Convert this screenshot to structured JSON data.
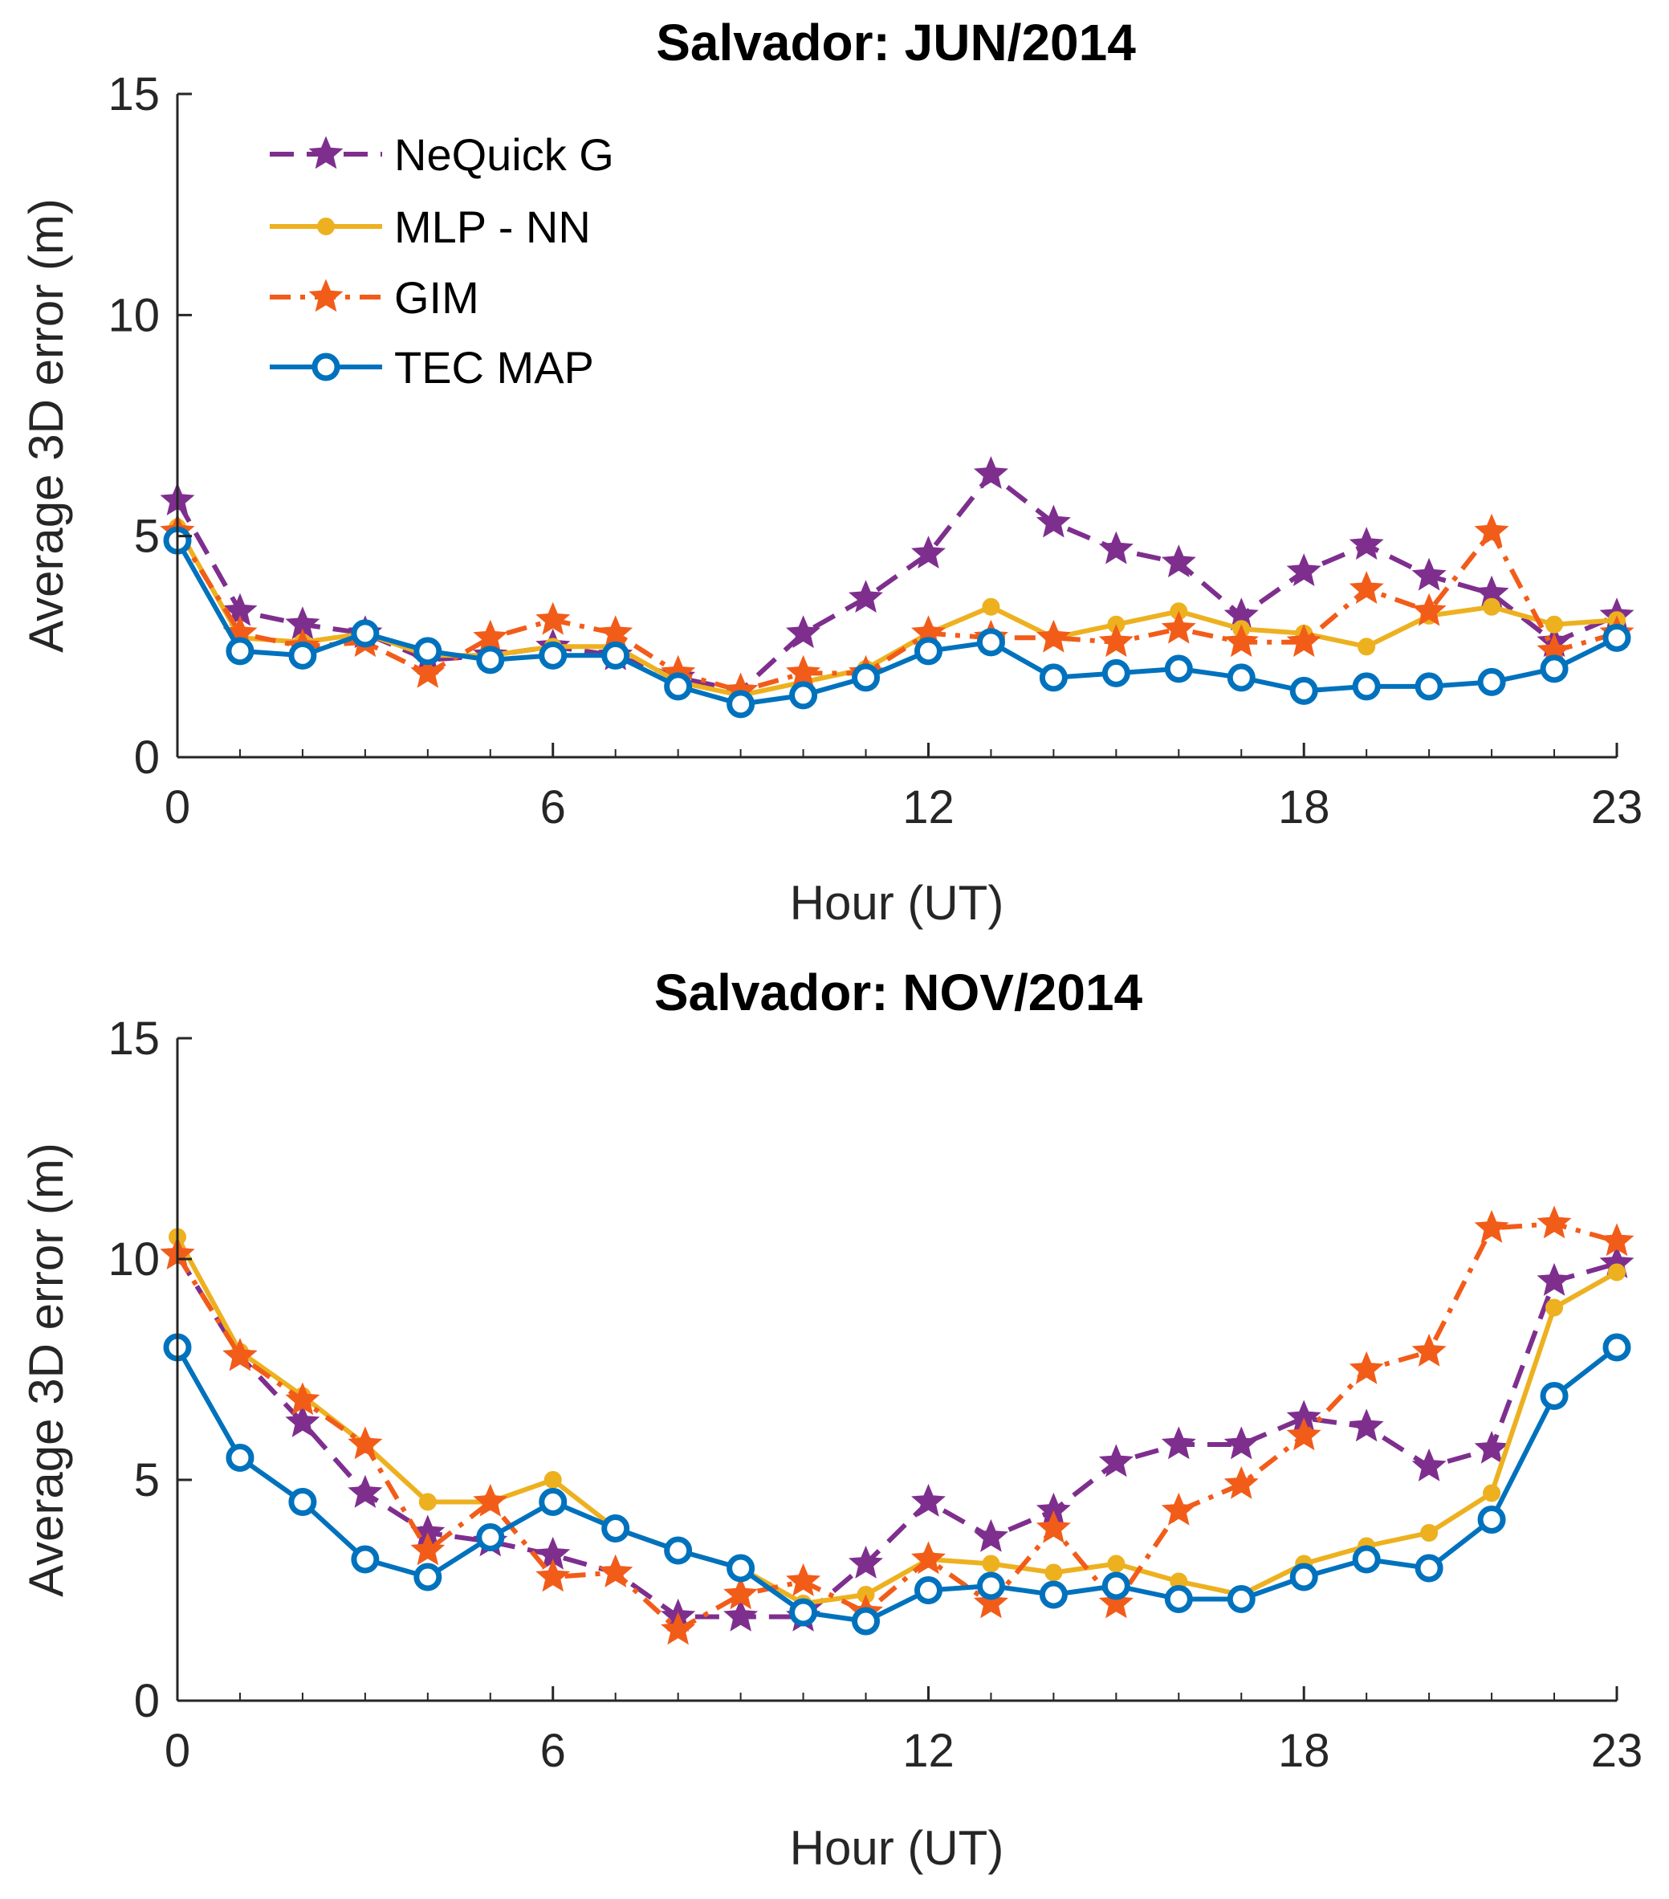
{
  "chart_data": [
    {
      "type": "line",
      "title": "Salvador: JUN/2014",
      "xlabel": "Hour (UT)",
      "ylabel": "Average 3D error (m)",
      "xlim": [
        0,
        23
      ],
      "ylim": [
        0,
        15
      ],
      "xticks": [
        0,
        6,
        12,
        18,
        23
      ],
      "yticks": [
        0,
        5,
        10,
        15
      ],
      "legend_position": "top-left",
      "x": [
        0,
        1,
        2,
        3,
        4,
        5,
        6,
        7,
        8,
        9,
        10,
        11,
        12,
        13,
        14,
        15,
        16,
        17,
        18,
        19,
        20,
        21,
        22,
        23
      ],
      "series": [
        {
          "name": "NeQuick G",
          "color": "#7E2F8E",
          "marker": "star",
          "line": "dashed",
          "values": [
            5.8,
            3.3,
            3.0,
            2.8,
            2.2,
            2.3,
            2.5,
            2.3,
            1.8,
            1.5,
            2.8,
            3.6,
            4.6,
            6.4,
            5.3,
            4.7,
            4.4,
            3.2,
            4.2,
            4.8,
            4.1,
            3.7,
            2.6,
            3.2
          ]
        },
        {
          "name": "MLP - NN",
          "color": "#EDB120",
          "marker": "dot",
          "line": "solid",
          "values": [
            5.2,
            2.7,
            2.6,
            2.8,
            2.3,
            2.3,
            2.5,
            2.5,
            1.7,
            1.4,
            1.7,
            2.0,
            2.8,
            3.4,
            2.7,
            3.0,
            3.3,
            2.9,
            2.8,
            2.5,
            3.2,
            3.4,
            3.0,
            3.1
          ]
        },
        {
          "name": "GIM",
          "color": "#F25C19",
          "marker": "star",
          "line": "dashdot",
          "values": [
            5.1,
            2.8,
            2.5,
            2.6,
            1.9,
            2.7,
            3.1,
            2.8,
            1.9,
            1.5,
            1.9,
            1.9,
            2.8,
            2.7,
            2.7,
            2.6,
            2.9,
            2.6,
            2.6,
            3.8,
            3.3,
            5.1,
            2.4,
            2.8
          ]
        },
        {
          "name": "TEC MAP",
          "color": "#0072BD",
          "marker": "circle",
          "line": "solid",
          "values": [
            4.9,
            2.4,
            2.3,
            2.8,
            2.4,
            2.2,
            2.3,
            2.3,
            1.6,
            1.2,
            1.4,
            1.8,
            2.4,
            2.6,
            1.8,
            1.9,
            2.0,
            1.8,
            1.5,
            1.6,
            1.6,
            1.7,
            2.0,
            2.7
          ]
        }
      ]
    },
    {
      "type": "line",
      "title": "Salvador: NOV/2014",
      "xlabel": "Hour (UT)",
      "ylabel": "Average 3D error (m)",
      "xlim": [
        0,
        23
      ],
      "ylim": [
        0,
        15
      ],
      "xticks": [
        0,
        6,
        12,
        18,
        23
      ],
      "yticks": [
        0,
        5,
        10,
        15
      ],
      "x": [
        0,
        1,
        2,
        3,
        4,
        5,
        6,
        7,
        8,
        9,
        10,
        11,
        12,
        13,
        14,
        15,
        16,
        17,
        18,
        19,
        20,
        21,
        22,
        23
      ],
      "series": [
        {
          "name": "NeQuick G",
          "color": "#7E2F8E",
          "marker": "star",
          "line": "dashed",
          "values": [
            10.1,
            7.8,
            6.3,
            4.7,
            3.8,
            3.6,
            3.3,
            2.9,
            1.9,
            1.9,
            1.9,
            3.1,
            4.5,
            3.7,
            4.3,
            5.4,
            5.8,
            5.8,
            6.4,
            6.2,
            5.3,
            5.7,
            9.5,
            9.9
          ]
        },
        {
          "name": "MLP - NN",
          "color": "#EDB120",
          "marker": "dot",
          "line": "solid",
          "values": [
            10.5,
            7.9,
            6.9,
            5.8,
            4.5,
            4.5,
            5.0,
            3.9,
            3.4,
            3.0,
            2.2,
            2.4,
            3.2,
            3.1,
            2.9,
            3.1,
            2.7,
            2.4,
            3.1,
            3.5,
            3.8,
            4.7,
            8.9,
            9.7
          ]
        },
        {
          "name": "GIM",
          "color": "#F25C19",
          "marker": "star",
          "line": "dashdot",
          "values": [
            10.1,
            7.8,
            6.8,
            5.8,
            3.4,
            4.5,
            2.8,
            2.9,
            1.6,
            2.4,
            2.7,
            2.0,
            3.2,
            2.2,
            3.9,
            2.2,
            4.3,
            4.9,
            6.0,
            7.5,
            7.9,
            10.7,
            10.8,
            10.4
          ]
        },
        {
          "name": "TEC MAP",
          "color": "#0072BD",
          "marker": "circle",
          "line": "solid",
          "values": [
            8.0,
            5.5,
            4.5,
            3.2,
            2.8,
            3.7,
            4.5,
            3.9,
            3.4,
            3.0,
            2.0,
            1.8,
            2.5,
            2.6,
            2.4,
            2.6,
            2.3,
            2.3,
            2.8,
            3.2,
            3.0,
            4.1,
            6.9,
            8.0
          ]
        }
      ]
    }
  ]
}
